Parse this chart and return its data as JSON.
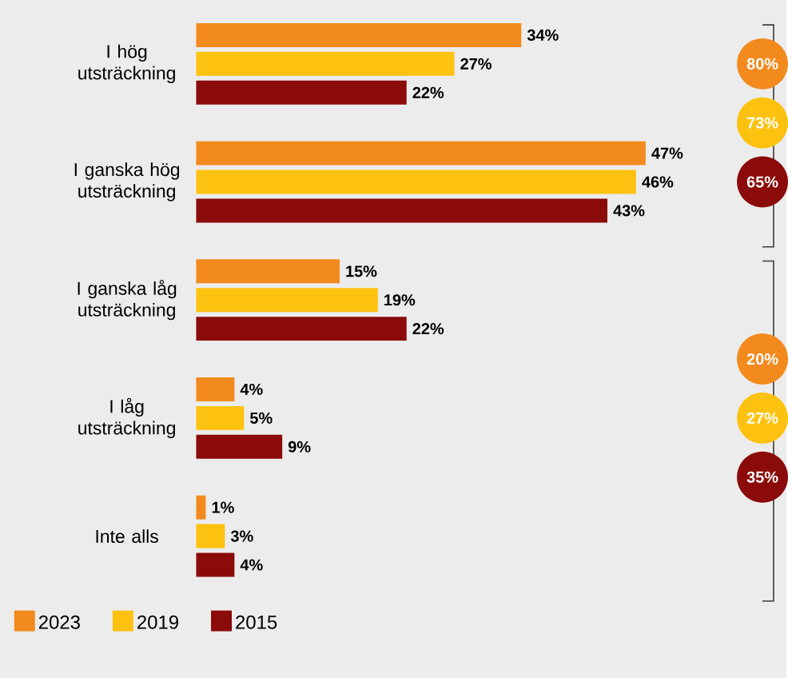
{
  "chart_data": {
    "type": "bar",
    "orientation": "horizontal",
    "legend": "bottom left",
    "categories": [
      "I hög utsträckning",
      "I ganska hög utsträckning",
      "I ganska låg utsträckning",
      "I låg utsträckning",
      "Inte alls"
    ],
    "series": [
      {
        "name": "2023",
        "color": "#f28a1e",
        "values": [
          34,
          47,
          15,
          4,
          1
        ],
        "value_labels": [
          "34%",
          "47%",
          "15%",
          "4%",
          "1%"
        ]
      },
      {
        "name": "2019",
        "color": "#fdc20f",
        "values": [
          27,
          46,
          19,
          5,
          3
        ],
        "value_labels": [
          "27%",
          "46%",
          "19%",
          "5%",
          "3%"
        ]
      },
      {
        "name": "2015",
        "color": "#8b0a0a",
        "values": [
          22,
          43,
          22,
          9,
          4
        ],
        "value_labels": [
          "22%",
          "43%",
          "22%",
          "9%",
          "4%"
        ]
      }
    ],
    "annotations": [
      "80%",
      "73%",
      "65%",
      "20%",
      "27%",
      "35%"
    ]
  }
}
